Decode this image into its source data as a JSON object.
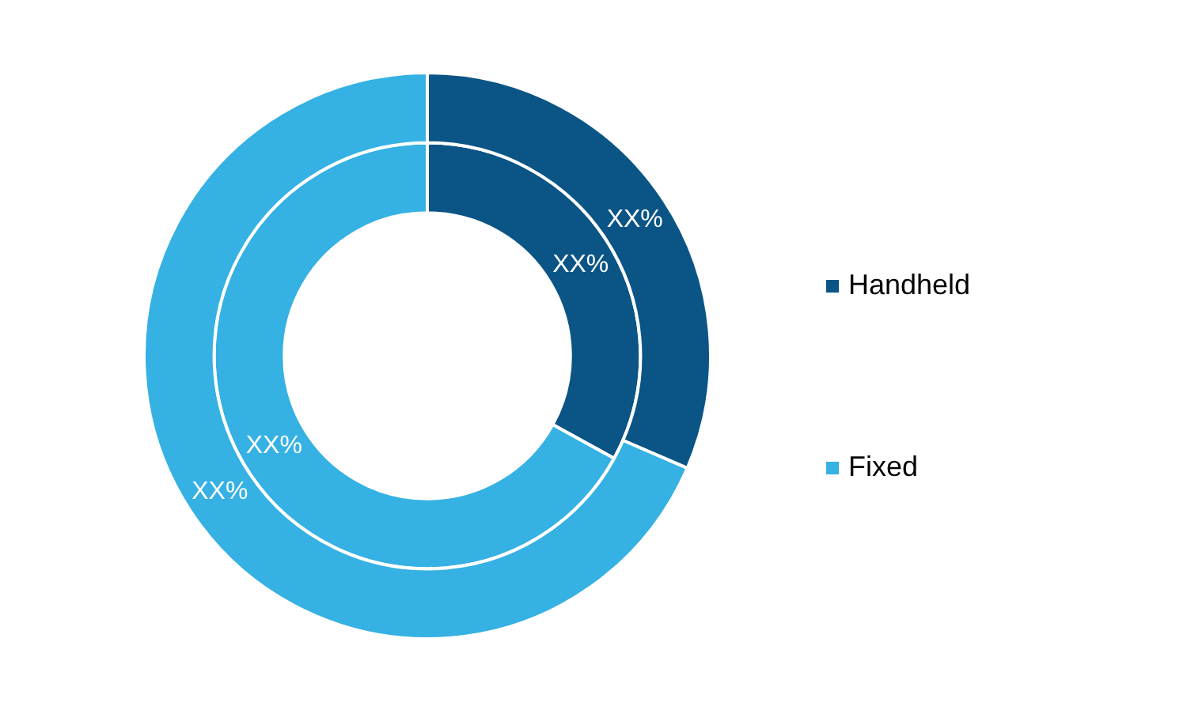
{
  "chart_data": {
    "type": "donut",
    "categories": [
      "Handheld",
      "Fixed"
    ],
    "colors": [
      "#0a5586",
      "#35b1e3"
    ],
    "series": [
      {
        "values": [
          31.5,
          68.5
        ],
        "value_labels": [
          "XX%",
          "XX%"
        ]
      },
      {
        "values": [
          33,
          67
        ],
        "value_labels": [
          "XX%",
          "XX%"
        ]
      }
    ],
    "legend": "right"
  }
}
